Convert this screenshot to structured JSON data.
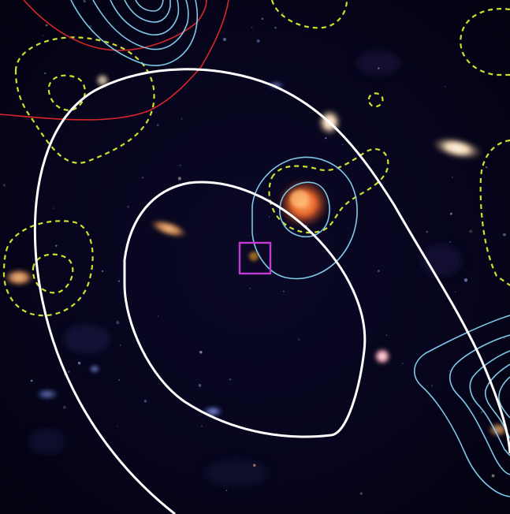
{
  "figure": {
    "kind": "astronomical image with contour overlays",
    "background_color": "#050418",
    "colors": {
      "white_contour": "#ffffff",
      "cyan_contour": "#7ec8e6",
      "red_contour": "#d8262b",
      "yellow_dashed_contour": "#cfe02a",
      "marker_box": "#c23bd2",
      "orange_source": "#ff8a3c",
      "pale_source": "#ffe6c8"
    },
    "layers": [
      "star-field",
      "yellow-dashed-contours",
      "red-contours",
      "cyan-contours",
      "white-contours",
      "target-marker"
    ]
  }
}
